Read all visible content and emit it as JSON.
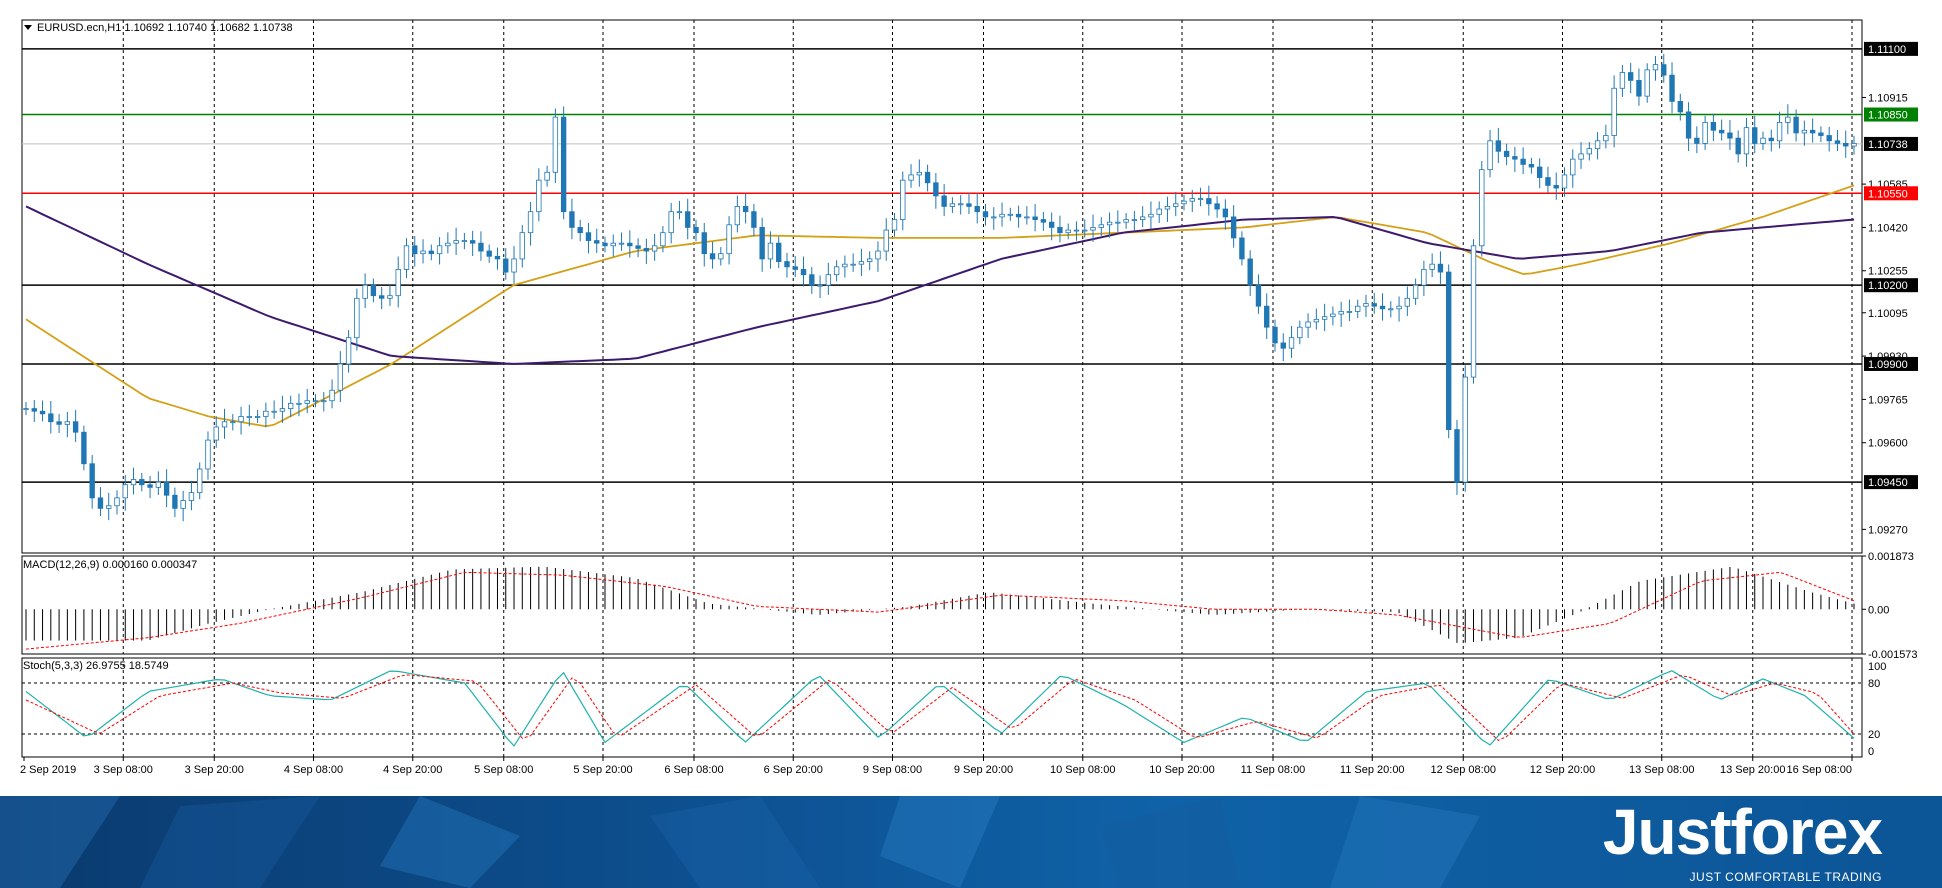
{
  "chart_data": [
    {
      "type": "candlestick",
      "symbol_header": "EURUSD.ecn,H1  1.10692 1.10740 1.10682 1.10738",
      "ylim": [
        1.0918,
        1.1121
      ],
      "y_ticks": [
        "1.09270",
        "1.09600",
        "1.09765",
        "1.09930",
        "1.10095",
        "1.10255",
        "1.10420",
        "1.10585",
        "1.10915"
      ],
      "x_ticks": [
        "2 Sep 2019",
        "3 Sep 08:00",
        "3 Sep 20:00",
        "4 Sep 08:00",
        "4 Sep 20:00",
        "5 Sep 08:00",
        "5 Sep 20:00",
        "6 Sep 08:00",
        "6 Sep 20:00",
        "9 Sep 08:00",
        "9 Sep 20:00",
        "10 Sep 08:00",
        "10 Sep 20:00",
        "11 Sep 08:00",
        "11 Sep 20:00",
        "12 Sep 08:00",
        "12 Sep 20:00",
        "13 Sep 08:00",
        "13 Sep 20:00",
        "16 Sep 08:00"
      ],
      "grid": true,
      "levels": [
        {
          "value": 1.111,
          "label": "1.11100",
          "color": "#000000"
        },
        {
          "value": 1.1085,
          "label": "1.10850",
          "color": "#008000"
        },
        {
          "value": 1.1055,
          "label": "1.10550",
          "color": "#ff0000"
        },
        {
          "value": 1.102,
          "label": "1.10200",
          "color": "#000000"
        },
        {
          "value": 1.099,
          "label": "1.09900",
          "color": "#000000"
        },
        {
          "value": 1.0945,
          "label": "1.09450",
          "color": "#000000"
        }
      ],
      "current_price": {
        "value": 1.10738,
        "label": "1.10738"
      },
      "colors": {
        "bull": "#ffffff",
        "bear": "#1f77b4",
        "wick": "#1f77b4",
        "ma_fast": "#d4a017",
        "ma_slow": "#3d1a6e",
        "grid": "#000000"
      },
      "close": [
        1.0973,
        1.0972,
        1.0971,
        1.0968,
        1.0967,
        1.0968,
        1.0964,
        1.0952,
        1.0939,
        1.0935,
        1.0936,
        1.0939,
        1.0944,
        1.0946,
        1.0944,
        1.0943,
        1.0945,
        1.094,
        1.0935,
        1.0938,
        1.0941,
        1.095,
        1.0961,
        1.0966,
        1.0968,
        1.0968,
        1.097,
        1.097,
        1.097,
        1.0972,
        1.0972,
        1.0973,
        1.0975,
        1.0975,
        1.0976,
        1.0976,
        1.0976,
        1.098,
        1.099,
        1.1,
        1.1015,
        1.102,
        1.1016,
        1.1015,
        1.1016,
        1.1026,
        1.1035,
        1.1032,
        1.1033,
        1.1032,
        1.1035,
        1.1036,
        1.1037,
        1.1037,
        1.1036,
        1.1033,
        1.1031,
        1.103,
        1.1025,
        1.103,
        1.104,
        1.1048,
        1.106,
        1.1063,
        1.1084,
        1.1048,
        1.1042,
        1.104,
        1.1037,
        1.1036,
        1.1035,
        1.1036,
        1.1036,
        1.1035,
        1.1034,
        1.1033,
        1.1035,
        1.104,
        1.1048,
        1.1048,
        1.1042,
        1.104,
        1.1032,
        1.103,
        1.1032,
        1.1043,
        1.105,
        1.1048,
        1.1042,
        1.103,
        1.1036,
        1.1029,
        1.1027,
        1.1026,
        1.1024,
        1.102,
        1.102,
        1.1024,
        1.1027,
        1.1028,
        1.1028,
        1.1029,
        1.103,
        1.1033,
        1.1041,
        1.1045,
        1.106,
        1.1062,
        1.1063,
        1.1059,
        1.1054,
        1.105,
        1.1051,
        1.1051,
        1.105,
        1.1048,
        1.1046,
        1.1046,
        1.1047,
        1.1047,
        1.1046,
        1.1046,
        1.1045,
        1.1044,
        1.1042,
        1.104,
        1.1041,
        1.1041,
        1.1041,
        1.1042,
        1.1043,
        1.1044,
        1.1044,
        1.1045,
        1.1045,
        1.1046,
        1.1047,
        1.1049,
        1.105,
        1.1051,
        1.1052,
        1.1053,
        1.1053,
        1.1051,
        1.1049,
        1.1046,
        1.1038,
        1.103,
        1.102,
        1.1012,
        1.1004,
        1.0998,
        1.0996,
        1.1,
        1.1004,
        1.1006,
        1.1007,
        1.1008,
        1.1009,
        1.101,
        1.101,
        1.1012,
        1.1013,
        1.1012,
        1.1011,
        1.1011,
        1.1012,
        1.1015,
        1.102,
        1.1026,
        1.1028,
        1.1025,
        1.0965,
        1.0945,
        1.0985,
        1.1035,
        1.1064,
        1.1075,
        1.1071,
        1.1069,
        1.1068,
        1.1066,
        1.1065,
        1.1061,
        1.1058,
        1.1057,
        1.1062,
        1.1068,
        1.107,
        1.1072,
        1.1075,
        1.1077,
        1.1095,
        1.1101,
        1.1098,
        1.1092,
        1.1102,
        1.1104,
        1.11,
        1.109,
        1.1086,
        1.1076,
        1.1074,
        1.1082,
        1.1079,
        1.1078,
        1.1076,
        1.107,
        1.108,
        1.1074,
        1.1076,
        1.1075,
        1.1082,
        1.1084,
        1.1078,
        1.1079,
        1.1078,
        1.1077,
        1.1075,
        1.1074,
        1.1073,
        1.1074
      ],
      "ma_fast": [
        [
          0,
          1.1007
        ],
        [
          20,
          1.0977
        ],
        [
          30,
          1.097
        ],
        [
          40,
          1.0966
        ],
        [
          60,
          1.099
        ],
        [
          80,
          1.102
        ],
        [
          100,
          1.1033
        ],
        [
          120,
          1.1039
        ],
        [
          140,
          1.1038
        ],
        [
          160,
          1.1038
        ],
        [
          180,
          1.104
        ],
        [
          200,
          1.1042
        ],
        [
          215,
          1.1046
        ],
        [
          230,
          1.104
        ],
        [
          240,
          1.1029
        ],
        [
          246,
          1.1024
        ],
        [
          255,
          1.1028
        ],
        [
          270,
          1.1036
        ],
        [
          285,
          1.1046
        ],
        [
          300,
          1.1058
        ]
      ],
      "ma_slow": [
        [
          0,
          1.105
        ],
        [
          20,
          1.1028
        ],
        [
          40,
          1.1008
        ],
        [
          60,
          1.0993
        ],
        [
          80,
          1.099
        ],
        [
          100,
          1.0992
        ],
        [
          120,
          1.1004
        ],
        [
          140,
          1.1014
        ],
        [
          160,
          1.103
        ],
        [
          180,
          1.104
        ],
        [
          200,
          1.1045
        ],
        [
          215,
          1.1046
        ],
        [
          230,
          1.1036
        ],
        [
          245,
          1.103
        ],
        [
          260,
          1.1033
        ],
        [
          275,
          1.104
        ],
        [
          290,
          1.1043
        ],
        [
          300,
          1.1045
        ]
      ]
    },
    {
      "type": "bar",
      "label": "MACD(12,26,9) 0.000160 0.000347",
      "ylim": [
        -0.001573,
        0.001873
      ],
      "y_ticks": [
        "0.001873",
        "0.00",
        "-0.001573"
      ],
      "colors": {
        "hist": "#000000",
        "signal": "#ff0000"
      },
      "histogram_keys": [
        [
          0,
          -0.0011
        ],
        [
          20,
          -0.0011
        ],
        [
          30,
          -0.0005
        ],
        [
          40,
          0.0
        ],
        [
          55,
          0.0006
        ],
        [
          70,
          0.0014
        ],
        [
          85,
          0.0015
        ],
        [
          100,
          0.0011
        ],
        [
          112,
          0.0002
        ],
        [
          130,
          -0.0002
        ],
        [
          145,
          0.0001
        ],
        [
          158,
          0.0006
        ],
        [
          175,
          0.0002
        ],
        [
          195,
          -0.0002
        ],
        [
          210,
          0.0
        ],
        [
          225,
          -0.0001
        ],
        [
          235,
          -0.0012
        ],
        [
          245,
          -0.001
        ],
        [
          255,
          -0.0001
        ],
        [
          265,
          0.001
        ],
        [
          280,
          0.0015
        ],
        [
          293,
          0.0006
        ],
        [
          300,
          0.0002
        ]
      ],
      "signal_keys": [
        [
          0,
          -0.0014
        ],
        [
          20,
          -0.001
        ],
        [
          35,
          -0.0005
        ],
        [
          55,
          0.0004
        ],
        [
          72,
          0.0013
        ],
        [
          88,
          0.0012
        ],
        [
          105,
          0.0008
        ],
        [
          120,
          0.0001
        ],
        [
          140,
          -0.0001
        ],
        [
          160,
          0.0005
        ],
        [
          180,
          0.0003
        ],
        [
          195,
          0.0
        ],
        [
          212,
          0.0
        ],
        [
          225,
          -0.0002
        ],
        [
          245,
          -0.001
        ],
        [
          260,
          -0.0005
        ],
        [
          275,
          0.001
        ],
        [
          288,
          0.0013
        ],
        [
          300,
          0.0003
        ]
      ]
    },
    {
      "type": "line",
      "label": "Stoch(5,3,3) 26.9755 18.5749",
      "ylim": [
        0,
        100
      ],
      "y_ticks": [
        "100",
        "80",
        "20",
        "0"
      ],
      "colors": {
        "main": "#20b2aa",
        "signal": "#ff0000"
      },
      "main_keys": [
        [
          0,
          70
        ],
        [
          10,
          15
        ],
        [
          20,
          70
        ],
        [
          32,
          85
        ],
        [
          40,
          65
        ],
        [
          50,
          60
        ],
        [
          60,
          95
        ],
        [
          72,
          80
        ],
        [
          80,
          5
        ],
        [
          88,
          95
        ],
        [
          95,
          10
        ],
        [
          108,
          80
        ],
        [
          118,
          10
        ],
        [
          130,
          90
        ],
        [
          140,
          15
        ],
        [
          150,
          80
        ],
        [
          160,
          20
        ],
        [
          170,
          90
        ],
        [
          180,
          55
        ],
        [
          190,
          10
        ],
        [
          200,
          40
        ],
        [
          210,
          10
        ],
        [
          220,
          70
        ],
        [
          230,
          80
        ],
        [
          240,
          5
        ],
        [
          250,
          85
        ],
        [
          260,
          60
        ],
        [
          270,
          95
        ],
        [
          278,
          60
        ],
        [
          285,
          85
        ],
        [
          292,
          65
        ],
        [
          300,
          15
        ]
      ],
      "signal_keys": [
        [
          0,
          60
        ],
        [
          12,
          20
        ],
        [
          22,
          65
        ],
        [
          34,
          80
        ],
        [
          42,
          68
        ],
        [
          52,
          62
        ],
        [
          62,
          90
        ],
        [
          74,
          82
        ],
        [
          82,
          10
        ],
        [
          90,
          90
        ],
        [
          97,
          15
        ],
        [
          110,
          78
        ],
        [
          120,
          15
        ],
        [
          132,
          85
        ],
        [
          142,
          20
        ],
        [
          152,
          75
        ],
        [
          162,
          25
        ],
        [
          172,
          85
        ],
        [
          182,
          60
        ],
        [
          192,
          15
        ],
        [
          202,
          35
        ],
        [
          212,
          15
        ],
        [
          222,
          65
        ],
        [
          232,
          78
        ],
        [
          242,
          10
        ],
        [
          252,
          80
        ],
        [
          262,
          62
        ],
        [
          272,
          90
        ],
        [
          280,
          65
        ],
        [
          287,
          80
        ],
        [
          294,
          68
        ],
        [
          300,
          20
        ]
      ]
    }
  ],
  "brand": {
    "name": "Justforex",
    "tagline": "JUST COMFORTABLE TRADING"
  }
}
